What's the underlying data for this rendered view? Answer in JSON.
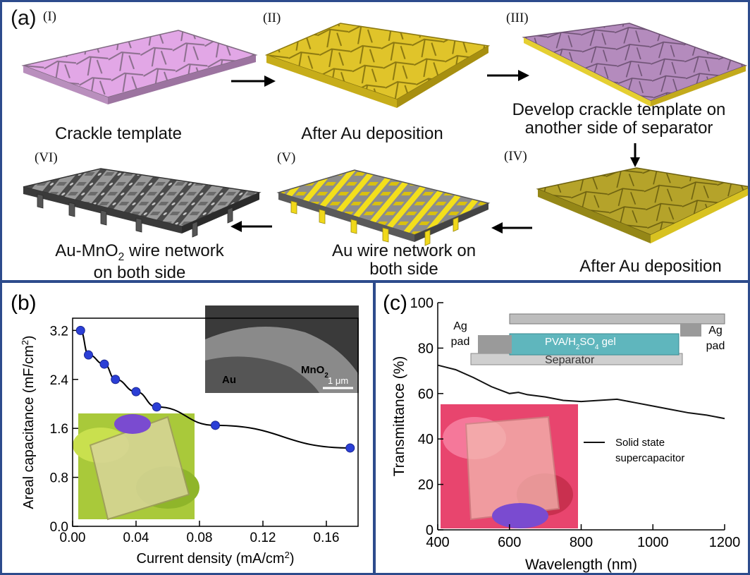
{
  "panel_a": {
    "label": "(a)",
    "steps": [
      {
        "num": "(I)",
        "caption": "Crackle template"
      },
      {
        "num": "(II)",
        "caption": "After Au deposition"
      },
      {
        "num": "(III)",
        "caption_lines": [
          "Develop crackle template on",
          "another side of separator"
        ]
      },
      {
        "num": "(IV)",
        "caption": "After Au deposition"
      },
      {
        "num": "(V)",
        "caption_lines": [
          "Au wire network on",
          "both side"
        ]
      },
      {
        "num": "(VI)",
        "caption_lines": [
          "Au-MnO2 wire network",
          "on both side"
        ]
      }
    ]
  },
  "chart_data": [
    {
      "type": "scatter",
      "panel_label": "(b)",
      "xlabel": "Current density (mA/cm2)",
      "ylabel": "Areal capacitance (mF/cm2)",
      "xlim": [
        0.0,
        0.18
      ],
      "ylim": [
        0.0,
        3.4
      ],
      "xticks": [
        "0.00",
        "0.04",
        "0.08",
        "0.12",
        "0.16"
      ],
      "yticks": [
        "0.0",
        "0.8",
        "1.6",
        "2.4",
        "3.2"
      ],
      "x": [
        0.005,
        0.01,
        0.02,
        0.027,
        0.04,
        0.053,
        0.09,
        0.175
      ],
      "y": [
        3.2,
        2.8,
        2.65,
        2.4,
        2.2,
        1.95,
        1.65,
        1.28
      ],
      "fit_line": true,
      "marker_color": "#2b3fd6",
      "inset_sem": {
        "label_au": "Au",
        "label_mno2": "MnO2",
        "scale_bar": "1 μm"
      }
    },
    {
      "type": "line",
      "panel_label": "(c)",
      "xlabel": "Wavelength (nm)",
      "ylabel": "Transmittance (%)",
      "xlim": [
        400,
        1200
      ],
      "ylim": [
        0,
        100
      ],
      "xticks": [
        "400",
        "600",
        "800",
        "1000",
        "1200"
      ],
      "yticks": [
        "0",
        "20",
        "40",
        "60",
        "80",
        "100"
      ],
      "series": [
        {
          "name": "Solid state supercapacitor",
          "x": [
            400,
            450,
            500,
            550,
            600,
            625,
            650,
            700,
            750,
            800,
            850,
            900,
            950,
            1000,
            1050,
            1100,
            1150,
            1200
          ],
          "y": [
            72.5,
            70.5,
            67.0,
            63.0,
            60.0,
            60.5,
            59.5,
            58.5,
            57.0,
            56.5,
            57.0,
            57.5,
            56.0,
            54.5,
            53.0,
            51.5,
            50.5,
            49.0
          ]
        }
      ],
      "line_color": "#111111",
      "legend_lines": [
        "Solid state",
        "supercapacitor"
      ],
      "inset_device": {
        "gel": "PVA/H2SO4 gel",
        "separator": "Separator",
        "pad_left": [
          "Ag",
          "pad"
        ],
        "pad_right": [
          "Ag",
          "pad"
        ]
      }
    }
  ]
}
